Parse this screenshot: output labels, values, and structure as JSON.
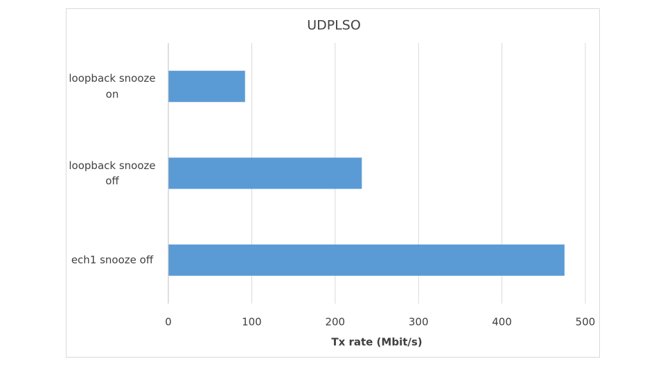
{
  "chart_data": {
    "type": "hbar",
    "title": "UDPLSO",
    "x_label": "Tx rate (Mbit/s)",
    "categories": [
      "loopback snooze on",
      "loopback snooze off",
      "ech1 snooze off"
    ],
    "values": [
      92,
      232,
      475
    ],
    "color": "#5b9bd5",
    "xlim": [
      0,
      500
    ],
    "xticks": [
      0,
      100,
      200,
      300,
      400,
      500
    ],
    "grid": true
  }
}
